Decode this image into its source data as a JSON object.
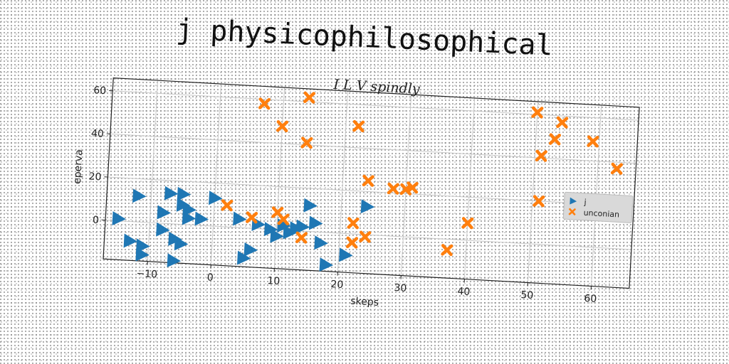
{
  "title": "j physicophilosophical",
  "chart_data": {
    "type": "scatter",
    "title": "I L V spindly",
    "xlabel": "skeps",
    "ylabel": "eperva",
    "xlim": [
      -17,
      66
    ],
    "ylim": [
      -18,
      66
    ],
    "xticks": [
      -10,
      0,
      10,
      20,
      30,
      40,
      50,
      60
    ],
    "yticks": [
      0,
      20,
      40,
      60
    ],
    "grid": true,
    "legend_position": "right",
    "series": [
      {
        "name": "j",
        "marker": "triangle-right",
        "color": "#1f77b4",
        "points": [
          [
            -15,
            1
          ],
          [
            -13,
            -9
          ],
          [
            -12,
            12
          ],
          [
            -11,
            -11
          ],
          [
            -11,
            -15
          ],
          [
            -8,
            -3
          ],
          [
            -8,
            5
          ],
          [
            -7,
            14
          ],
          [
            -6,
            -7
          ],
          [
            -6,
            -17
          ],
          [
            -5,
            -9
          ],
          [
            -5,
            9
          ],
          [
            -5,
            14
          ],
          [
            -4,
            3
          ],
          [
            -4,
            7
          ],
          [
            -2,
            3
          ],
          [
            0,
            13
          ],
          [
            4,
            4
          ],
          [
            5,
            -14
          ],
          [
            6,
            -10
          ],
          [
            7,
            2
          ],
          [
            9,
            0
          ],
          [
            10,
            -3
          ],
          [
            11,
            2
          ],
          [
            12,
            -1
          ],
          [
            13,
            1
          ],
          [
            14,
            2
          ],
          [
            15,
            12
          ],
          [
            16,
            4
          ],
          [
            17,
            -5
          ],
          [
            18,
            -15
          ],
          [
            21,
            -10
          ],
          [
            24,
            13
          ]
        ]
      },
      {
        "name": "unconian",
        "marker": "x",
        "color": "#ff7f0e",
        "points": [
          [
            2,
            10
          ],
          [
            7,
            58
          ],
          [
            6,
            5
          ],
          [
            10,
            48
          ],
          [
            10,
            8
          ],
          [
            11,
            5
          ],
          [
            14,
            41
          ],
          [
            14,
            62
          ],
          [
            14,
            -3
          ],
          [
            22,
            5
          ],
          [
            22,
            50
          ],
          [
            22,
            -4
          ],
          [
            24,
            -1
          ],
          [
            24,
            25
          ],
          [
            28,
            22
          ],
          [
            30,
            22
          ],
          [
            31,
            23
          ],
          [
            37,
            -5
          ],
          [
            40,
            8
          ],
          [
            50,
            61
          ],
          [
            51,
            41
          ],
          [
            51,
            20
          ],
          [
            53,
            49
          ],
          [
            54,
            57
          ],
          [
            59,
            49
          ],
          [
            63,
            37
          ]
        ]
      }
    ]
  }
}
